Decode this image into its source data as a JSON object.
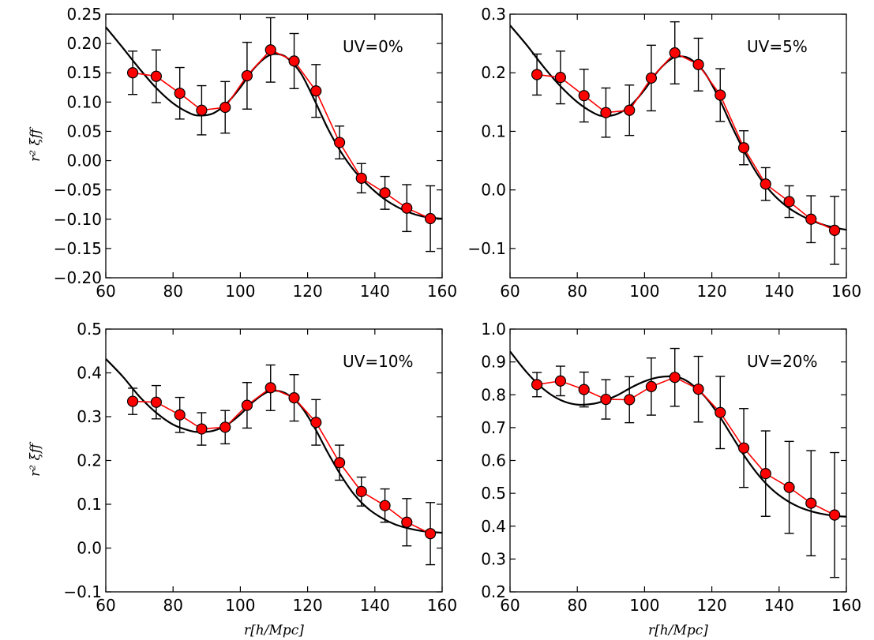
{
  "colors": {
    "data": "#ff0000",
    "model": "#000000",
    "marker_edge": "#000000"
  },
  "chart_data": [
    {
      "type": "line",
      "annotation": "UV=0%",
      "ylabel": "r² ξff",
      "xlabel": "",
      "xlim": [
        60,
        160
      ],
      "ylim": [
        -0.2,
        0.25
      ],
      "xticks": [
        "60",
        "80",
        "100",
        "120",
        "140",
        "160"
      ],
      "yticks": [
        "−0.20",
        "−0.15",
        "−0.10",
        "−0.05",
        "0.00",
        "0.05",
        "0.10",
        "0.15",
        "0.20",
        "0.25"
      ],
      "ytick_values": [
        -0.2,
        -0.15,
        -0.1,
        -0.05,
        0.0,
        0.05,
        0.1,
        0.15,
        0.2,
        0.25
      ],
      "data": {
        "x": [
          68,
          75,
          82,
          88.5,
          95.5,
          102,
          109,
          116,
          122.5,
          129.5,
          136,
          143,
          149.5,
          156.5
        ],
        "y": [
          0.15,
          0.144,
          0.115,
          0.086,
          0.091,
          0.145,
          0.189,
          0.17,
          0.119,
          0.031,
          -0.03,
          -0.055,
          -0.081,
          -0.099
        ],
        "err": [
          0.037,
          0.045,
          0.044,
          0.042,
          0.044,
          0.057,
          0.055,
          0.047,
          0.045,
          0.028,
          0.025,
          0.028,
          0.04,
          0.056
        ]
      },
      "model": {
        "x": [
          60,
          65,
          70,
          75,
          80,
          85,
          88,
          92,
          96,
          100,
          104,
          108,
          111,
          114,
          118,
          122,
          126,
          130,
          134,
          138,
          142,
          146,
          150,
          154,
          158,
          160
        ],
        "y": [
          0.228,
          0.193,
          0.157,
          0.124,
          0.098,
          0.081,
          0.077,
          0.081,
          0.098,
          0.125,
          0.157,
          0.178,
          0.182,
          0.175,
          0.149,
          0.104,
          0.055,
          0.014,
          -0.018,
          -0.042,
          -0.062,
          -0.077,
          -0.088,
          -0.095,
          -0.098,
          -0.099
        ]
      }
    },
    {
      "type": "line",
      "annotation": "UV=5%",
      "ylabel": "",
      "xlabel": "",
      "xlim": [
        60,
        160
      ],
      "ylim": [
        -0.15,
        0.3
      ],
      "xticks": [
        "60",
        "80",
        "100",
        "120",
        "140",
        "160"
      ],
      "yticks": [
        "−0.1",
        "0.0",
        "0.1",
        "0.2",
        "0.3"
      ],
      "ytick_values": [
        -0.1,
        0.0,
        0.1,
        0.2,
        0.3
      ],
      "data": {
        "x": [
          68,
          75,
          82,
          88.5,
          95.5,
          102,
          109,
          116,
          122.5,
          129.5,
          136,
          143,
          149.5,
          156.5
        ],
        "y": [
          0.197,
          0.192,
          0.161,
          0.132,
          0.136,
          0.191,
          0.234,
          0.214,
          0.162,
          0.072,
          0.01,
          -0.02,
          -0.05,
          -0.069
        ],
        "err": [
          0.035,
          0.045,
          0.045,
          0.042,
          0.043,
          0.056,
          0.053,
          0.045,
          0.045,
          0.029,
          0.028,
          0.027,
          0.04,
          0.058
        ]
      },
      "model": {
        "x": [
          60,
          65,
          70,
          75,
          80,
          85,
          88,
          92,
          96,
          100,
          104,
          108,
          111,
          114,
          118,
          122,
          126,
          130,
          134,
          138,
          142,
          146,
          150,
          154,
          158,
          160
        ],
        "y": [
          0.281,
          0.247,
          0.21,
          0.177,
          0.15,
          0.131,
          0.126,
          0.13,
          0.145,
          0.171,
          0.203,
          0.224,
          0.228,
          0.222,
          0.199,
          0.158,
          0.108,
          0.062,
          0.023,
          -0.006,
          -0.027,
          -0.042,
          -0.053,
          -0.061,
          -0.066,
          -0.068
        ]
      }
    },
    {
      "type": "line",
      "annotation": "UV=10%",
      "ylabel": "r² ξff",
      "xlabel": "r[h/Mpc]",
      "xlim": [
        60,
        160
      ],
      "ylim": [
        -0.1,
        0.5
      ],
      "xticks": [
        "60",
        "80",
        "100",
        "120",
        "140",
        "160"
      ],
      "yticks": [
        "−0.1",
        "0.0",
        "0.1",
        "0.2",
        "0.3",
        "0.4",
        "0.5"
      ],
      "ytick_values": [
        -0.1,
        0.0,
        0.1,
        0.2,
        0.3,
        0.4,
        0.5
      ],
      "data": {
        "x": [
          68,
          75,
          82,
          88.5,
          95.5,
          102,
          109,
          116,
          122.5,
          129.5,
          136,
          143,
          149.5,
          156.5
        ],
        "y": [
          0.335,
          0.333,
          0.304,
          0.272,
          0.276,
          0.326,
          0.366,
          0.343,
          0.287,
          0.195,
          0.129,
          0.097,
          0.059,
          0.033
        ],
        "err": [
          0.03,
          0.038,
          0.04,
          0.037,
          0.038,
          0.052,
          0.052,
          0.053,
          0.052,
          0.04,
          0.033,
          0.038,
          0.054,
          0.071
        ]
      },
      "model": {
        "x": [
          60,
          65,
          70,
          75,
          80,
          85,
          88,
          92,
          96,
          100,
          104,
          108,
          111,
          114,
          118,
          122,
          126,
          130,
          134,
          138,
          142,
          146,
          150,
          154,
          158,
          160
        ],
        "y": [
          0.432,
          0.392,
          0.346,
          0.309,
          0.282,
          0.268,
          0.265,
          0.268,
          0.281,
          0.305,
          0.335,
          0.356,
          0.359,
          0.351,
          0.324,
          0.276,
          0.218,
          0.165,
          0.121,
          0.09,
          0.069,
          0.054,
          0.045,
          0.039,
          0.036,
          0.035
        ]
      }
    },
    {
      "type": "line",
      "annotation": "UV=20%",
      "ylabel": "",
      "xlabel": "r[h/Mpc]",
      "xlim": [
        60,
        160
      ],
      "ylim": [
        0.2,
        1.0
      ],
      "xticks": [
        "60",
        "80",
        "100",
        "120",
        "140",
        "160"
      ],
      "yticks": [
        "0.2",
        "0.3",
        "0.4",
        "0.5",
        "0.6",
        "0.7",
        "0.8",
        "0.9",
        "1.0"
      ],
      "ytick_values": [
        0.2,
        0.3,
        0.4,
        0.5,
        0.6,
        0.7,
        0.8,
        0.9,
        1.0
      ],
      "data": {
        "x": [
          68,
          75,
          82,
          88.5,
          95.5,
          102,
          109,
          116,
          122.5,
          129.5,
          136,
          143,
          149.5,
          156.5
        ],
        "y": [
          0.831,
          0.842,
          0.816,
          0.786,
          0.785,
          0.825,
          0.853,
          0.817,
          0.746,
          0.638,
          0.56,
          0.518,
          0.47,
          0.434
        ],
        "err": [
          0.037,
          0.045,
          0.053,
          0.06,
          0.07,
          0.087,
          0.088,
          0.1,
          0.11,
          0.12,
          0.13,
          0.14,
          0.16,
          0.19
        ]
      },
      "model": {
        "x": [
          60,
          65,
          70,
          75,
          80,
          85,
          88,
          92,
          96,
          100,
          104,
          108,
          111,
          114,
          118,
          122,
          126,
          130,
          134,
          138,
          142,
          146,
          150,
          154,
          158,
          160
        ],
        "y": [
          0.932,
          0.868,
          0.817,
          0.784,
          0.77,
          0.773,
          0.782,
          0.799,
          0.822,
          0.841,
          0.853,
          0.856,
          0.85,
          0.832,
          0.794,
          0.739,
          0.674,
          0.609,
          0.554,
          0.511,
          0.48,
          0.458,
          0.444,
          0.435,
          0.43,
          0.429
        ]
      }
    }
  ]
}
